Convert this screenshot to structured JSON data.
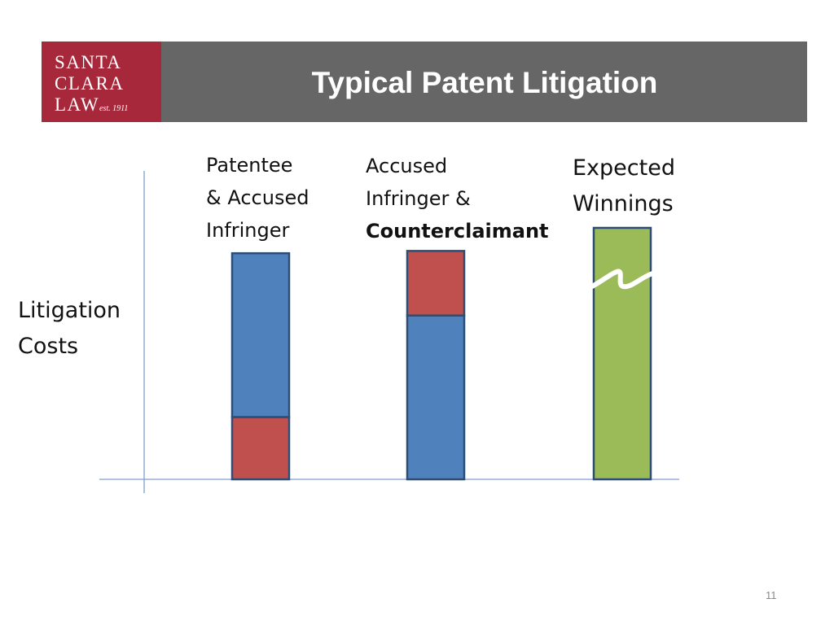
{
  "header": {
    "title": "Typical Patent Litigation",
    "logo": {
      "line1": "SANTA",
      "line2": "CLARA",
      "line3": "LAW",
      "est": "est. 1911",
      "color": "#a8283b"
    },
    "bar_color": "#666666"
  },
  "chart_data": {
    "type": "bar",
    "stacked": true,
    "categories": [
      {
        "lines": [
          "Patentee",
          "& Accused",
          "Infringer"
        ],
        "bold": [
          false,
          false,
          false
        ]
      },
      {
        "lines": [
          "Accused",
          "Infringer  &",
          "Counterclaimant"
        ],
        "bold": [
          false,
          false,
          true
        ]
      },
      {
        "lines": [
          "Expected",
          "Winnings"
        ],
        "bold": [
          false,
          false
        ]
      }
    ],
    "ylabel_lines": [
      "Litigation",
      "Costs"
    ],
    "bars": [
      {
        "segments": [
          {
            "value": 27,
            "color": "#c0504d"
          },
          {
            "value": 71,
            "color": "#4f81bd"
          }
        ]
      },
      {
        "segments": [
          {
            "value": 71,
            "color": "#4f81bd"
          },
          {
            "value": 28,
            "color": "#c0504d"
          }
        ]
      },
      {
        "segments": [
          {
            "value": 109,
            "color": "#9bbb59"
          }
        ],
        "break": true
      }
    ],
    "grid": false,
    "legend": "none",
    "axis_color": "#7f9fcf",
    "ylim": [
      0,
      109
    ]
  },
  "page_number": "11"
}
